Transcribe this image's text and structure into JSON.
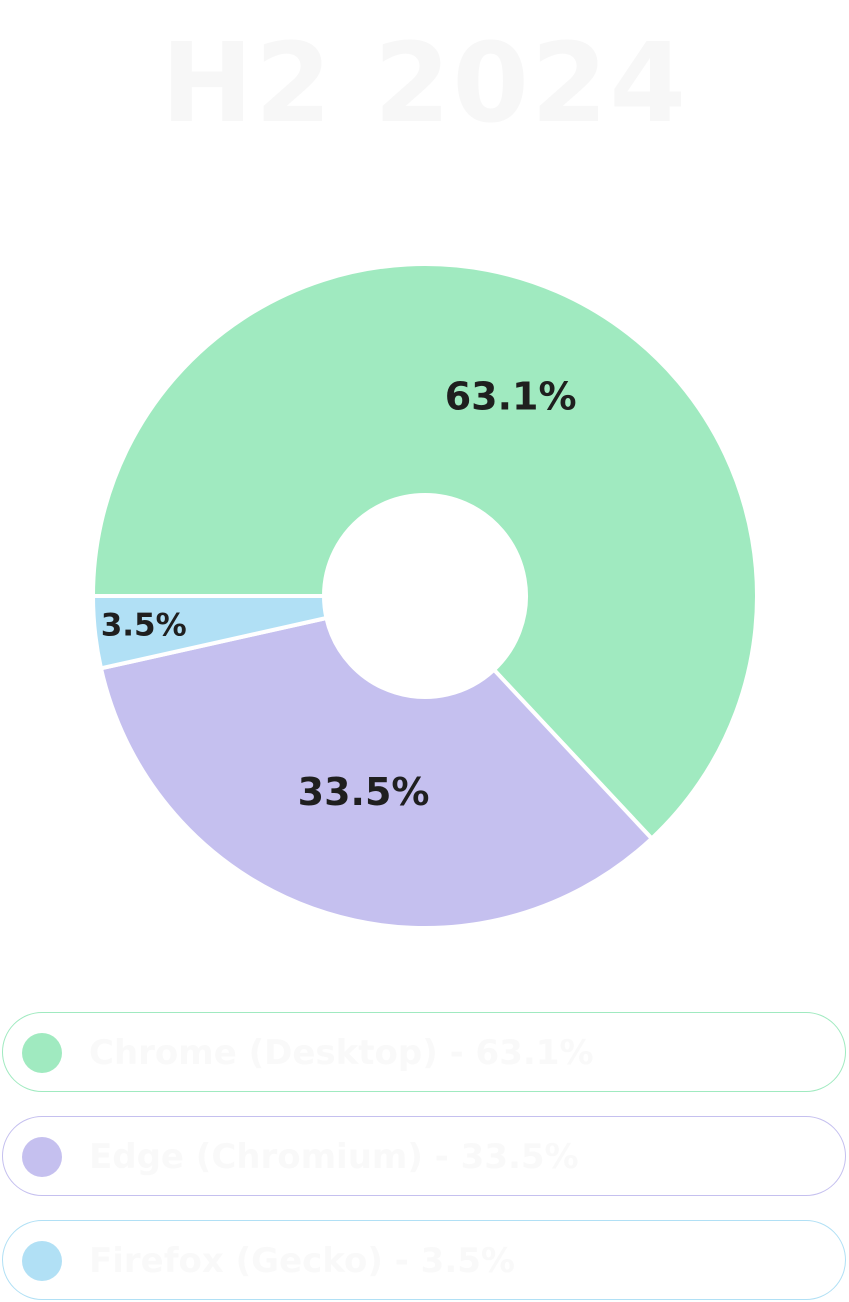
{
  "header": {
    "title": "H2 2024"
  },
  "chart_data": {
    "type": "pie",
    "title": "H2 2024",
    "categories": [
      "Chrome",
      "Edge",
      "Firefox"
    ],
    "values": [
      63.1,
      33.5,
      3.5
    ],
    "labels": [
      "63.1%",
      "33.5%",
      "3.5%"
    ],
    "colors": [
      "#a0eac0",
      "#c5c0ef",
      "#b1e0f5"
    ],
    "start_angle_deg": 180,
    "direction": "clockwise"
  },
  "legend": {
    "items": [
      {
        "text": "Chrome (Desktop) - 63.1%",
        "color": "#a0eac0"
      },
      {
        "text": "Edge (Chromium) - 33.5%",
        "color": "#c5c0ef"
      },
      {
        "text": "Firefox (Gecko) - 3.5%",
        "color": "#b1e0f5"
      }
    ]
  }
}
